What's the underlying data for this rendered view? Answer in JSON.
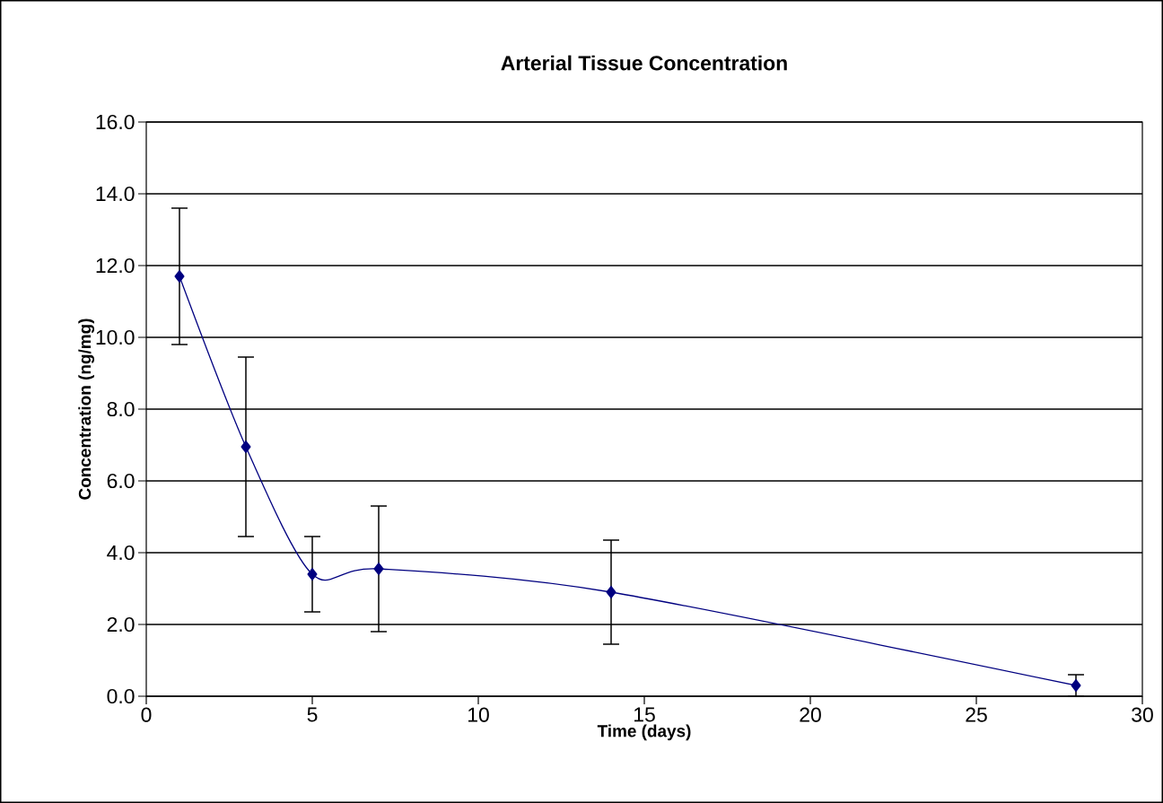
{
  "chart_data": {
    "type": "line",
    "title": "Arterial Tissue Concentration",
    "xlabel": "Time (days)",
    "ylabel": "Concentration (ng/mg)",
    "x": [
      1,
      3,
      5,
      7,
      14,
      28
    ],
    "series": [
      {
        "color": "#000080",
        "values": [
          11.7,
          6.95,
          3.4,
          3.55,
          2.9,
          0.3
        ],
        "errors": [
          1.9,
          2.5,
          1.05,
          1.75,
          1.45,
          0.3
        ]
      }
    ],
    "xlim": [
      0,
      30
    ],
    "xticks": [
      0,
      5,
      10,
      15,
      20,
      25,
      30
    ],
    "ylim": [
      0,
      16
    ],
    "yticks": [
      {
        "value": 0,
        "label": "0.0"
      },
      {
        "value": 2,
        "label": "2.0"
      },
      {
        "value": 4,
        "label": "4.0"
      },
      {
        "value": 6,
        "label": "6.0"
      },
      {
        "value": 8,
        "label": "8.0"
      },
      {
        "value": 10,
        "label": "10.0"
      },
      {
        "value": 12,
        "label": "12.0"
      },
      {
        "value": 14,
        "label": "14.0"
      },
      {
        "value": 16,
        "label": "16.0"
      }
    ],
    "grid": "y",
    "marker": "diamond",
    "line_style": "solid"
  }
}
